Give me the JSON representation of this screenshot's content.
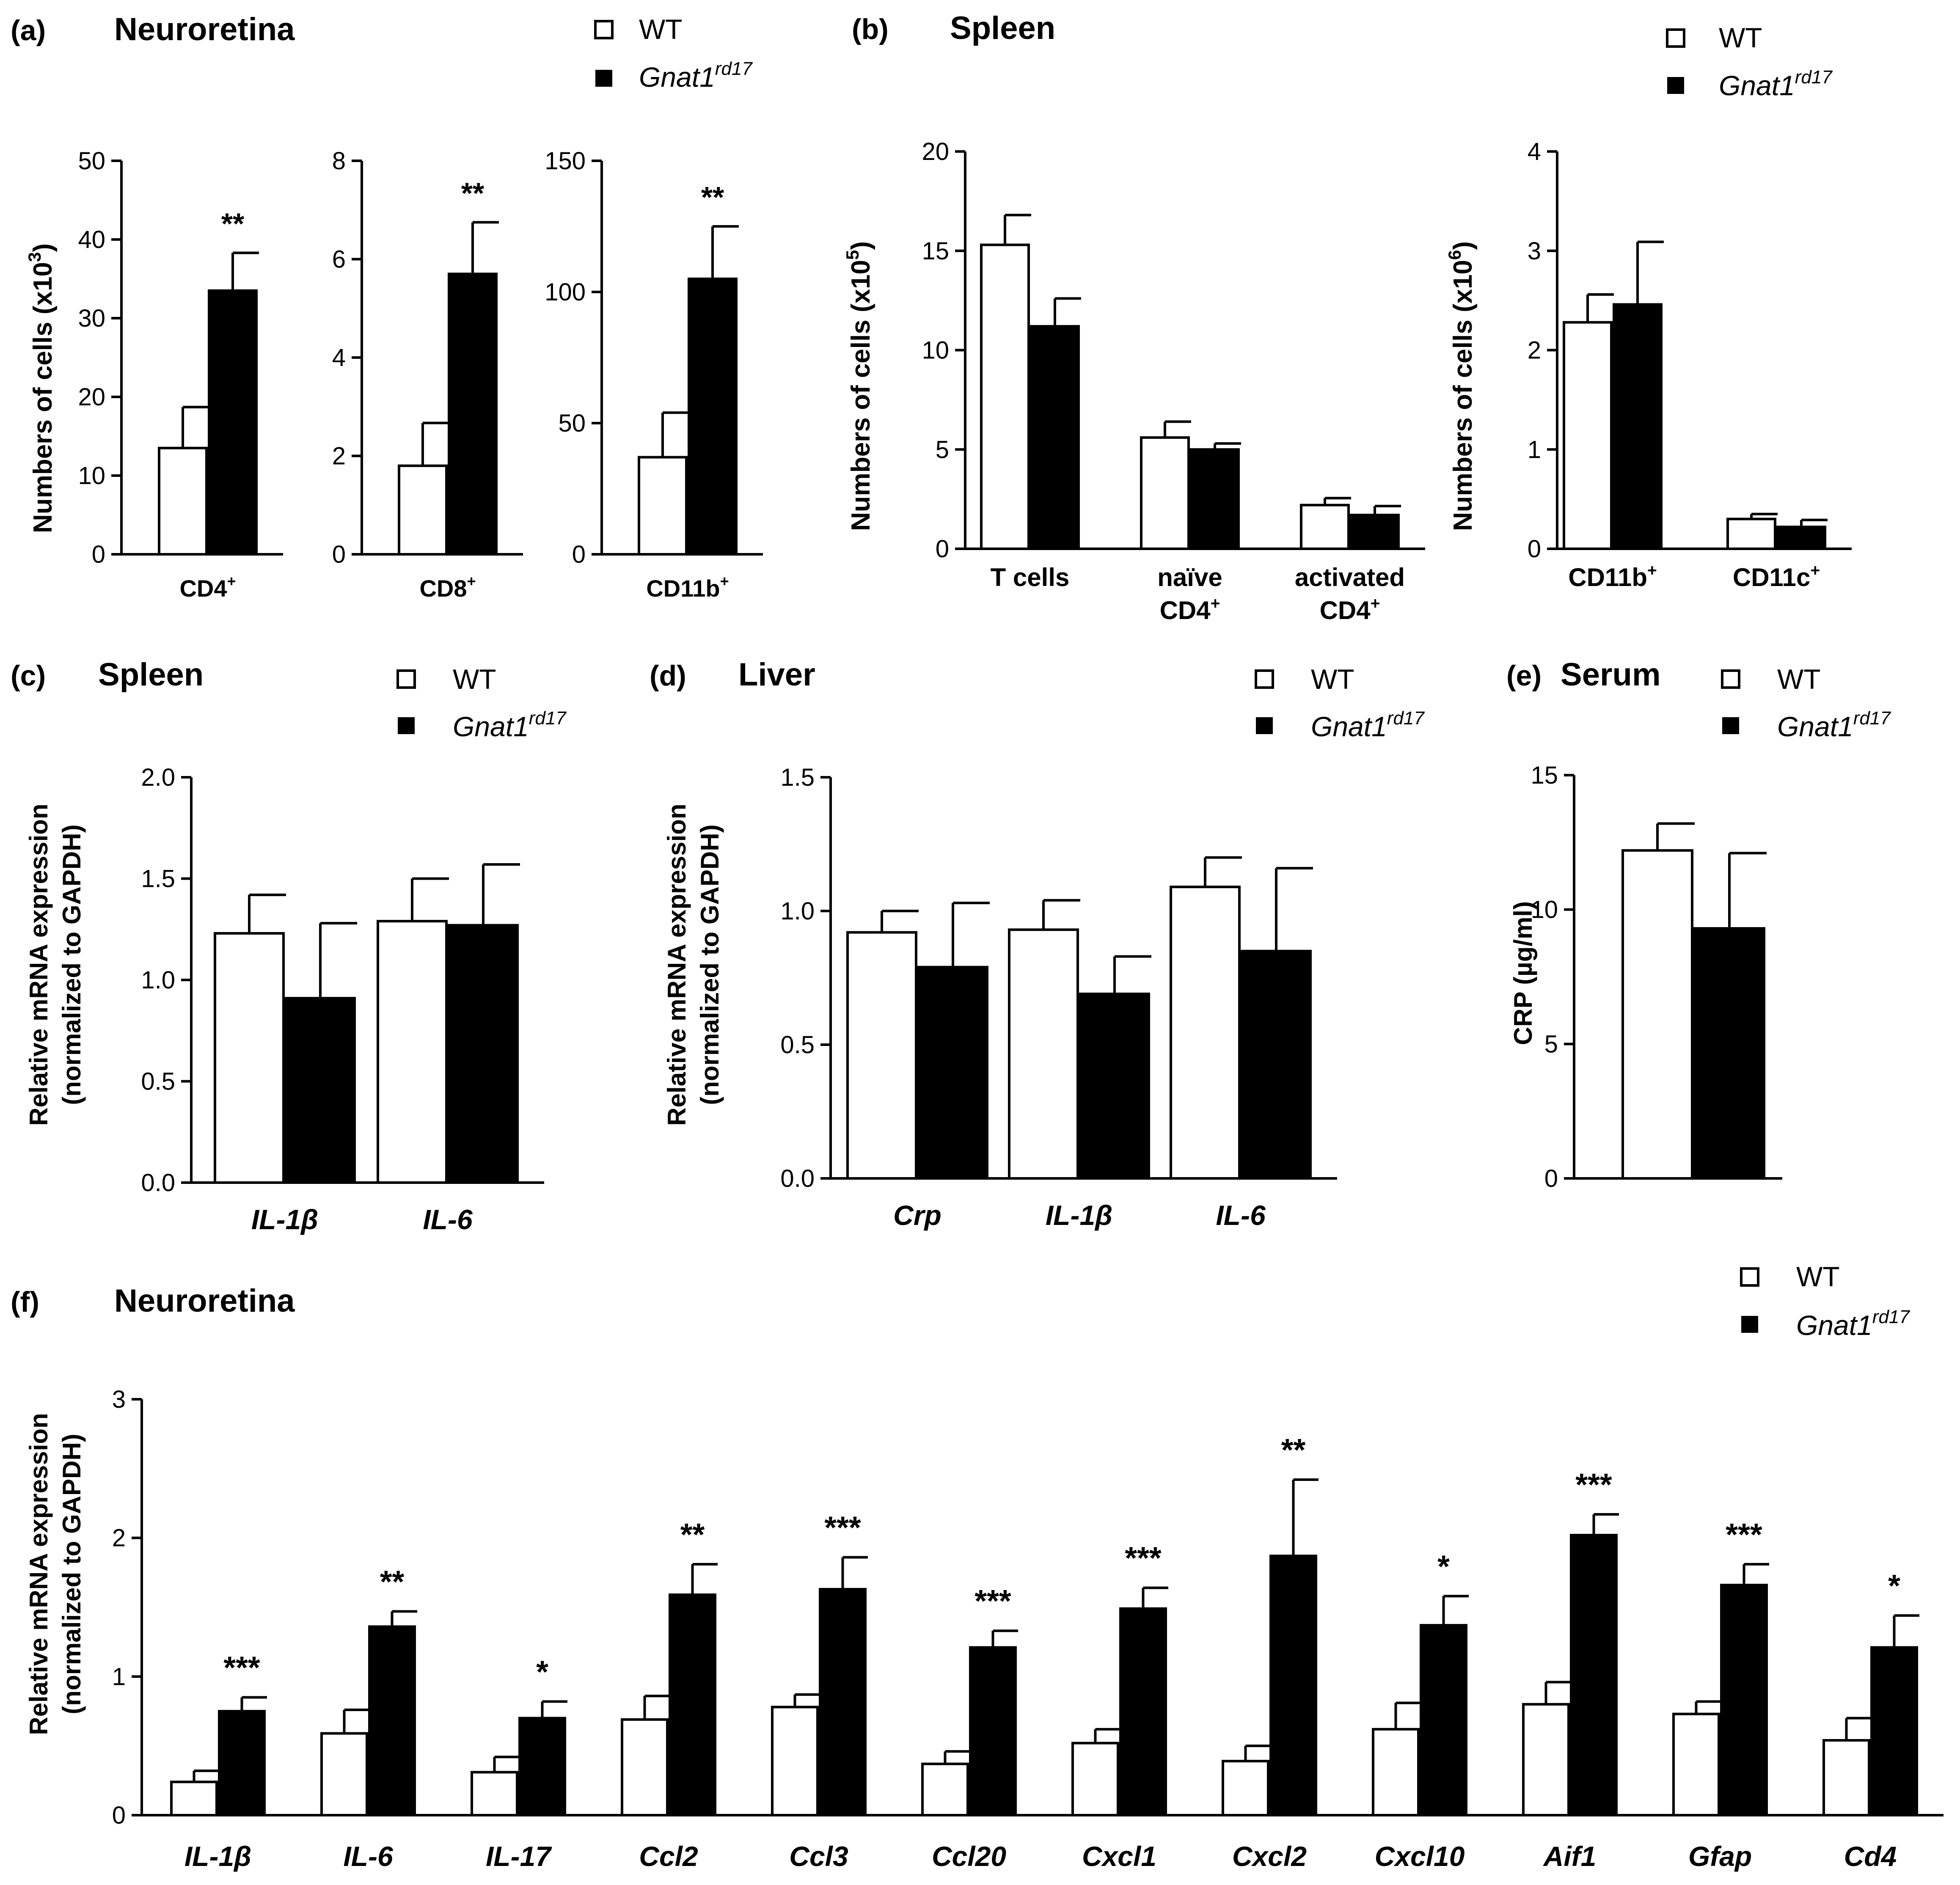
{
  "colors": {
    "wt": "#ffffff",
    "mutant": "#000000",
    "axis": "#000000"
  },
  "legend": {
    "wt": "WT",
    "mutant_base": "Gnat1",
    "mutant_sup": "rd17"
  },
  "panels": {
    "a": {
      "letter": "(a)",
      "title": "Neuroretina",
      "ylabel_base": "Numbers of cells (x10",
      "ylabel_sup": "3",
      "ylabel_end": ")"
    },
    "b": {
      "letter": "(b)",
      "title": "Spleen",
      "ylabel1_base": "Numbers of cells (x10",
      "ylabel1_sup": "5",
      "ylabel2_base": "Numbers of cells (x10",
      "ylabel2_sup": "6",
      "ylabel_end": ")"
    },
    "c": {
      "letter": "(c)",
      "title": "Spleen",
      "ylabel_line1": "Relative mRNA expression",
      "ylabel_line2": "(normalized to GAPDH)"
    },
    "d": {
      "letter": "(d)",
      "title": "Liver",
      "ylabel_line1": "Relative mRNA expression",
      "ylabel_line2": "(normalized to GAPDH)"
    },
    "e": {
      "letter": "(e)",
      "title": "Serum",
      "ylabel": "CRP (µg/ml)"
    },
    "f": {
      "letter": "(f)",
      "title": "Neuroretina",
      "ylabel_line1": "Relative mRNA expression",
      "ylabel_line2": "(normalized to GAPDH)"
    }
  },
  "chart_data": [
    {
      "id": "a1",
      "type": "bar",
      "panel": "a",
      "ylim": [
        0,
        50
      ],
      "yticks": [
        "0",
        "10",
        "20",
        "30",
        "40",
        "50"
      ],
      "categories": [
        {
          "base": "CD4",
          "sup": "+",
          "italic": false
        }
      ],
      "series": [
        {
          "name": "WT",
          "values": [
            13.5
          ],
          "errors": [
            5.2
          ]
        },
        {
          "name": "Gnat1rd17",
          "values": [
            33.5
          ],
          "errors": [
            4.8
          ]
        }
      ],
      "significance": [
        "**"
      ]
    },
    {
      "id": "a2",
      "type": "bar",
      "panel": "a",
      "ylim": [
        0,
        8
      ],
      "yticks": [
        "0",
        "2",
        "4",
        "6",
        "8"
      ],
      "categories": [
        {
          "base": "CD8",
          "sup": "+",
          "italic": false
        }
      ],
      "series": [
        {
          "name": "WT",
          "values": [
            1.8
          ],
          "errors": [
            0.87
          ]
        },
        {
          "name": "Gnat1rd17",
          "values": [
            5.7
          ],
          "errors": [
            1.05
          ]
        }
      ],
      "significance": [
        "**"
      ]
    },
    {
      "id": "a3",
      "type": "bar",
      "panel": "a",
      "ylim": [
        0,
        150
      ],
      "yticks": [
        "0",
        "50",
        "100",
        "150"
      ],
      "categories": [
        {
          "base": "CD11b",
          "sup": "+",
          "italic": false
        }
      ],
      "series": [
        {
          "name": "WT",
          "values": [
            37
          ],
          "errors": [
            17
          ]
        },
        {
          "name": "Gnat1rd17",
          "values": [
            105
          ],
          "errors": [
            20
          ]
        }
      ],
      "significance": [
        "**"
      ]
    },
    {
      "id": "b1",
      "type": "bar",
      "panel": "b",
      "ylim": [
        0,
        20
      ],
      "yticks": [
        "0",
        "5",
        "10",
        "15",
        "20"
      ],
      "categories": [
        {
          "base": "T cells",
          "sup": "",
          "italic": false
        },
        {
          "base": "naïve",
          "sup": "",
          "line2": "CD4",
          "line2sup": "+",
          "italic": false
        },
        {
          "base": "activated",
          "sup": "",
          "line2": "CD4",
          "line2sup": "+",
          "italic": false
        }
      ],
      "series": [
        {
          "name": "WT",
          "values": [
            15.3,
            5.6,
            2.2
          ],
          "errors": [
            1.5,
            0.8,
            0.35
          ]
        },
        {
          "name": "Gnat1rd17",
          "values": [
            11.2,
            5.0,
            1.7
          ],
          "errors": [
            1.4,
            0.3,
            0.45
          ]
        }
      ],
      "significance": [
        "",
        "",
        ""
      ]
    },
    {
      "id": "b2",
      "type": "bar",
      "panel": "b",
      "ylim": [
        0,
        4
      ],
      "yticks": [
        "0",
        "1",
        "2",
        "3",
        "4"
      ],
      "categories": [
        {
          "base": "CD11b",
          "sup": "+",
          "italic": false
        },
        {
          "base": "CD11c",
          "sup": "+",
          "italic": false
        }
      ],
      "series": [
        {
          "name": "WT",
          "values": [
            2.28,
            0.3
          ],
          "errors": [
            0.28,
            0.05
          ]
        },
        {
          "name": "Gnat1rd17",
          "values": [
            2.46,
            0.22
          ],
          "errors": [
            0.63,
            0.07
          ]
        }
      ],
      "significance": [
        "",
        ""
      ]
    },
    {
      "id": "c",
      "type": "bar",
      "panel": "c",
      "ylim": [
        0,
        2
      ],
      "yticks": [
        "0.0",
        "0.5",
        "1.0",
        "1.5",
        "2.0"
      ],
      "categories": [
        {
          "base": "IL-1β",
          "sup": "",
          "italic": true
        },
        {
          "base": "IL-6",
          "sup": "",
          "italic": true
        }
      ],
      "series": [
        {
          "name": "WT",
          "values": [
            1.23,
            1.29
          ],
          "errors": [
            0.19,
            0.21
          ]
        },
        {
          "name": "Gnat1rd17",
          "values": [
            0.91,
            1.27
          ],
          "errors": [
            0.37,
            0.3
          ]
        }
      ],
      "significance": [
        "",
        ""
      ]
    },
    {
      "id": "d",
      "type": "bar",
      "panel": "d",
      "ylim": [
        0,
        1.5
      ],
      "yticks": [
        "0.0",
        "0.5",
        "1.0",
        "1.5"
      ],
      "categories": [
        {
          "base": "Crp",
          "sup": "",
          "italic": true
        },
        {
          "base": "IL-1β",
          "sup": "",
          "italic": true
        },
        {
          "base": "IL-6",
          "sup": "",
          "italic": true
        }
      ],
      "series": [
        {
          "name": "WT",
          "values": [
            0.92,
            0.93,
            1.09
          ],
          "errors": [
            0.08,
            0.11,
            0.11
          ]
        },
        {
          "name": "Gnat1rd17",
          "values": [
            0.79,
            0.69,
            0.85
          ],
          "errors": [
            0.24,
            0.14,
            0.31
          ]
        }
      ],
      "significance": [
        "",
        "",
        ""
      ]
    },
    {
      "id": "e",
      "type": "bar",
      "panel": "e",
      "ylim": [
        0,
        15
      ],
      "yticks": [
        "0",
        "5",
        "10",
        "15"
      ],
      "categories": [
        {
          "base": "",
          "sup": "",
          "italic": false
        }
      ],
      "series": [
        {
          "name": "WT",
          "values": [
            12.2
          ],
          "errors": [
            1.0
          ]
        },
        {
          "name": "Gnat1rd17",
          "values": [
            9.3
          ],
          "errors": [
            2.8
          ]
        }
      ],
      "significance": [
        ""
      ]
    },
    {
      "id": "f",
      "type": "bar",
      "panel": "f",
      "ylim": [
        0,
        3
      ],
      "yticks": [
        "0",
        "1",
        "2",
        "3"
      ],
      "categories": [
        {
          "base": "IL-1β",
          "sup": "",
          "italic": true
        },
        {
          "base": "IL-6",
          "sup": "",
          "italic": true
        },
        {
          "base": "IL-17",
          "sup": "",
          "italic": true
        },
        {
          "base": "Ccl2",
          "sup": "",
          "italic": true
        },
        {
          "base": "Ccl3",
          "sup": "",
          "italic": true
        },
        {
          "base": "Ccl20",
          "sup": "",
          "italic": true
        },
        {
          "base": "Cxcl1",
          "sup": "",
          "italic": true
        },
        {
          "base": "Cxcl2",
          "sup": "",
          "italic": true
        },
        {
          "base": "Cxcl10",
          "sup": "",
          "italic": true
        },
        {
          "base": "Aif1",
          "sup": "",
          "italic": true
        },
        {
          "base": "Gfap",
          "sup": "",
          "italic": true
        },
        {
          "base": "Cd4",
          "sup": "",
          "italic": true
        }
      ],
      "series": [
        {
          "name": "WT",
          "values": [
            0.24,
            0.59,
            0.31,
            0.69,
            0.78,
            0.37,
            0.52,
            0.39,
            0.62,
            0.8,
            0.73,
            0.54
          ],
          "errors": [
            0.08,
            0.17,
            0.11,
            0.17,
            0.09,
            0.09,
            0.1,
            0.11,
            0.19,
            0.16,
            0.09,
            0.16
          ]
        },
        {
          "name": "Gnat1rd17",
          "values": [
            0.75,
            1.36,
            0.7,
            1.59,
            1.63,
            1.21,
            1.49,
            1.87,
            1.37,
            2.02,
            1.66,
            1.21
          ],
          "errors": [
            0.1,
            0.11,
            0.12,
            0.22,
            0.23,
            0.12,
            0.15,
            0.55,
            0.21,
            0.15,
            0.15,
            0.23
          ]
        }
      ],
      "significance": [
        "***",
        "**",
        "*",
        "**",
        "***",
        "***",
        "***",
        "**",
        "*",
        "***",
        "***",
        "*"
      ]
    }
  ]
}
